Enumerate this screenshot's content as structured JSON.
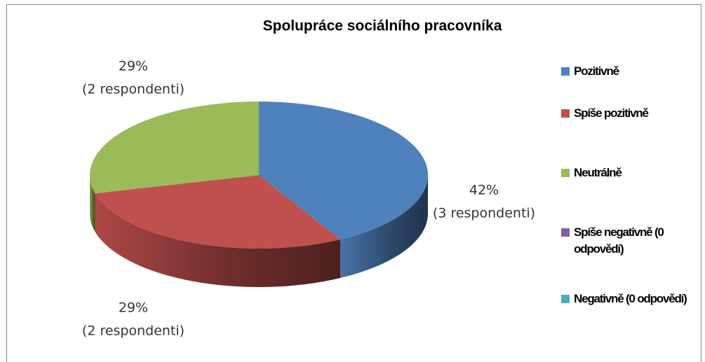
{
  "chart_data": {
    "type": "pie",
    "title": "Spolupráce sociálního pracovníka",
    "categories": [
      "Pozitivně",
      "Spíše pozitivně",
      "Neutrálně",
      "Spíše negativně (0 odpovědí)",
      "Negativně (0 odpovědí)"
    ],
    "values": [
      42,
      29,
      29,
      0,
      0
    ],
    "value_labels": [
      [
        "42%",
        "(3 respondenti)"
      ],
      [
        "29%",
        "(2 respondenti)"
      ],
      [
        "29%",
        "(2 respondenti)"
      ],
      null,
      null
    ],
    "colors": [
      "#4f81bd",
      "#c0504d",
      "#9bbb59",
      "#8064a2",
      "#4bacc6"
    ],
    "legend": "right"
  }
}
